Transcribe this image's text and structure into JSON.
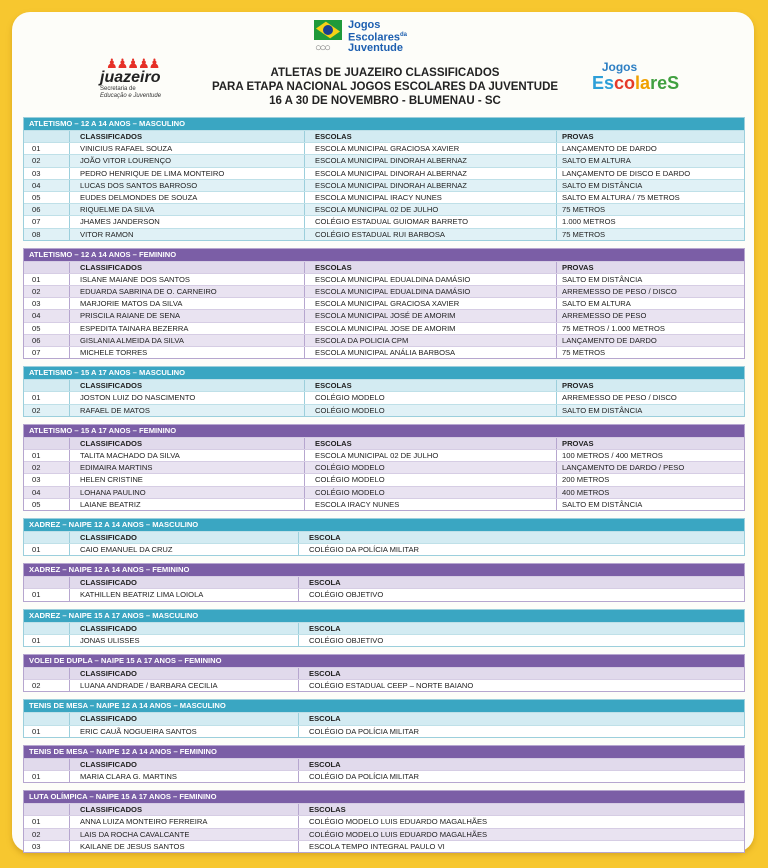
{
  "logos": {
    "top": "Jogos Escolares da Juventude",
    "left": {
      "name": "juazeiro",
      "subtitle": "Secretaria de Educação e Juventude"
    },
    "right": "Jogos Escolares"
  },
  "title": {
    "line1": "ATLETAS DE JUAZEIRO CLASSIFICADOS",
    "line2": "PARA ETAPA NACIONAL JOGOS ESCOLARES DA JUVENTUDE",
    "line3": "16 A 30 DE NOVEMBRO - BLUMENAU - SC"
  },
  "colors": {
    "background": "#f7c72f",
    "teal": "#3aa6c2",
    "purple": "#7b5ea6"
  },
  "sections": [
    {
      "title": "ATLETISMO – 12 A 14 ANOS – MASCULINO",
      "theme": "teal",
      "headers": [
        "",
        "CLASSIFICADOS",
        "ESCOLAS",
        "PROVAS"
      ],
      "rows": [
        [
          "01",
          "VINICIUS RAFAEL SOUZA",
          "ESCOLA MUNICIPAL GRACIOSA XAVIER",
          "LANÇAMENTO DE DARDO"
        ],
        [
          "02",
          "JOÃO VITOR LOURENÇO",
          "ESCOLA MUNICIPAL DINORAH ALBERNAZ",
          "SALTO  EM ALTURA"
        ],
        [
          "03",
          "PEDRO HENRIQUE DE LIMA MONTEIRO",
          "ESCOLA MUNICIPAL DINORAH ALBERNAZ",
          "LANÇAMENTO DE DISCO E DARDO"
        ],
        [
          "04",
          "LUCAS DOS SANTOS BARROSO",
          "ESCOLA MUNICIPAL DINORAH ALBERNAZ",
          "SALTO EM DISTÂNCIA"
        ],
        [
          "05",
          "EUDES DELMONDES DE SOUZA",
          "ESCOLA MUNICIPAL IRACY NUNES",
          "SALTO EM ALTURA / 75 METROS"
        ],
        [
          "06",
          "RIQUELME DA SILVA",
          "ESCOLA MUNICIPAL 02 DE JULHO",
          "75 METROS"
        ],
        [
          "07",
          "JHAMES JANDERSON",
          "COLÉGIO ESTADUAL GUIOMAR BARRETO",
          "1.000 METROS"
        ],
        [
          "08",
          "VITOR RAMON",
          "COLÉGIO ESTADUAL RUI BARBOSA",
          "75 METROS"
        ]
      ]
    },
    {
      "title": "ATLETISMO – 12 A 14 ANOS – FEMININO",
      "theme": "purple",
      "headers": [
        "",
        "CLASSIFICADOS",
        "ESCOLAS",
        "PROVAS"
      ],
      "rows": [
        [
          "01",
          "ISLANE MAIANE DOS SANTOS",
          "ESCOLA MUNICIPAL EDUALDINA DAMÁSIO",
          "SALTO  EM DISTÂNCIA"
        ],
        [
          "02",
          "EDUARDA SABRINA DE O. CARNEIRO",
          "ESCOLA MUNICIPAL EDUALDINA DAMÁSIO",
          "ARREMESSO DE PESO / DISCO"
        ],
        [
          "03",
          "MARJORIE MATOS DA SILVA",
          "ESCOLA MUNICIPAL GRACIOSA XAVIER",
          "SALTO EM ALTURA"
        ],
        [
          "04",
          "PRISCILA RAIANE DE SENA",
          "ESCOLA MUNICIPAL JOSÉ DE AMORIM",
          "ARREMESSO DE PESO"
        ],
        [
          "05",
          "ESPEDITA  TAINARA  BEZERRA",
          "ESCOLA MUNICIPAL JOSE DE AMORIM",
          "75 METROS / 1.000 METROS"
        ],
        [
          "06",
          "GISLANIA ALMEIDA DA SILVA",
          "ESCOLA  DA POLICIA  CPM",
          "LANÇAMENTO DE DARDO"
        ],
        [
          "07",
          "MICHELE TORRES",
          "ESCOLA MUNICIPAL ANÁLIA BARBOSA",
          "75 METROS"
        ]
      ]
    },
    {
      "title": "ATLETISMO – 15 A 17 ANOS – MASCULINO",
      "theme": "teal",
      "headers": [
        "",
        "CLASSIFICADOS",
        "ESCOLAS",
        "PROVAS"
      ],
      "rows": [
        [
          "01",
          "JOSTON LUIZ DO NASCIMENTO",
          "COLÉGIO MODELO",
          "ARREMESSO DE PESO / DISCO"
        ],
        [
          "02",
          "RAFAEL DE MATOS",
          "COLÉGIO MODELO",
          "SALTO EM DISTÂNCIA"
        ]
      ]
    },
    {
      "title": "ATLETISMO – 15 A 17 ANOS – FEMININO",
      "theme": "purple",
      "headers": [
        "",
        "CLASSIFICADOS",
        "ESCOLAS",
        "PROVAS"
      ],
      "rows": [
        [
          "01",
          "TALITA MACHADO DA SILVA",
          "ESCOLA MUNICIPAL 02 DE JULHO",
          "100 METROS / 400 METROS"
        ],
        [
          "02",
          "EDIMAIRA MARTINS",
          "COLÉGIO MODELO",
          "LANÇAMENTO DE DARDO / PESO"
        ],
        [
          "03",
          "HELEN CRISTINE",
          "COLÉGIO MODELO",
          "200 METROS"
        ],
        [
          "04",
          "LOHANA PAULINO",
          "COLÉGIO MODELO",
          "400 METROS"
        ],
        [
          "05",
          "LAIANE BEATRIZ",
          "ESCOLA IRACY NUNES",
          "SALTO EM DISTÂNCIA"
        ]
      ]
    },
    {
      "title": "XADREZ – NAIPE 12 A 14 ANOS – MASCULINO",
      "theme": "teal",
      "headers": [
        "",
        "CLASSIFICADO",
        "ESCOLA"
      ],
      "rows": [
        [
          "01",
          "CAIO EMANUEL DA CRUZ",
          "COLÉGIO DA POLÍCIA MILITAR"
        ]
      ]
    },
    {
      "title": "XADREZ – NAIPE 12 A 14 ANOS – FEMININO",
      "theme": "purple",
      "headers": [
        "",
        "CLASSIFICADO",
        "ESCOLA"
      ],
      "rows": [
        [
          "01",
          "KATHILLEN BEATRIZ LIMA LOIOLA",
          "COLÉGIO OBJETIVO"
        ]
      ]
    },
    {
      "title": "XADREZ – NAIPE 15 A 17 ANOS – MASCULINO",
      "theme": "teal",
      "headers": [
        "",
        "CLASSIFICADO",
        "ESCOLA"
      ],
      "rows": [
        [
          "01",
          "JONAS ULISSES",
          "COLÉGIO OBJETIVO"
        ]
      ]
    },
    {
      "title": "VOLEI DE DUPLA – NAIPE 15 A 17 ANOS – FEMININO",
      "theme": "purple",
      "headers": [
        "",
        "CLASSIFICADO",
        "ESCOLA"
      ],
      "rows": [
        [
          "02",
          "LUANA ANDRADE / BARBARA CECILIA",
          "COLÉGIO ESTADUAL CEEP – NORTE BAIANO"
        ]
      ]
    },
    {
      "title": "TENIS DE MESA – NAIPE 12 A 14 ANOS – MASCULINO",
      "theme": "teal",
      "headers": [
        "",
        "CLASSIFICADO",
        "ESCOLA"
      ],
      "rows": [
        [
          "01",
          "ERIC CAUÃ NOGUEIRA SANTOS",
          "COLÉGIO DA POLÍCIA MILITAR"
        ]
      ]
    },
    {
      "title": "TENIS DE MESA – NAIPE 12 A 14 ANOS – FEMININO",
      "theme": "purple",
      "headers": [
        "",
        "CLASSIFICADO",
        "ESCOLA"
      ],
      "rows": [
        [
          "01",
          "MARIA CLARA G. MARTINS",
          "COLÉGIO DA POLÍCIA MILITAR"
        ]
      ]
    },
    {
      "title": "LUTA OLÍMPICA – NAIPE 15 A 17 ANOS – FEMININO",
      "theme": "purple",
      "headers": [
        "",
        "CLASSIFICADOS",
        "ESCOLAS"
      ],
      "rows": [
        [
          "01",
          "ANNA LUIZA MONTEIRO FERREIRA",
          "COLÉGIO MODELO LUIS EDUARDO MAGALHÃES"
        ],
        [
          "02",
          "LAIS DA ROCHA CAVALCANTE",
          "COLÉGIO MODELO LUIS EDUARDO MAGALHÃES"
        ],
        [
          "03",
          "KAILANE DE JESUS SANTOS",
          "ESCOLA TEMPO INTEGRAL PAULO VI"
        ]
      ]
    }
  ]
}
